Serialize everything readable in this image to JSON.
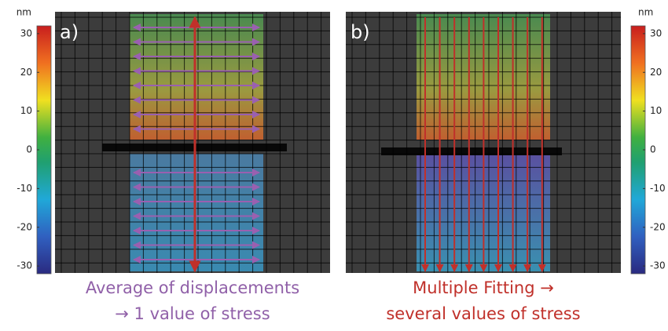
{
  "colorbars": [
    {
      "unit": "nm",
      "lim": [
        -32,
        32
      ],
      "ticks": [
        30,
        20,
        10,
        0,
        -10,
        -20,
        -30
      ]
    },
    {
      "unit": "nm",
      "lim": [
        -32,
        32
      ],
      "ticks": [
        30,
        20,
        10,
        0,
        -10,
        -20,
        -30
      ]
    }
  ],
  "panels": [
    {
      "label": "a)",
      "caption": [
        "Average of displacements",
        "→ 1 value of stress"
      ]
    },
    {
      "label": "b)",
      "caption": [
        "Multiple Fitting →",
        "several values of stress"
      ]
    }
  ]
}
